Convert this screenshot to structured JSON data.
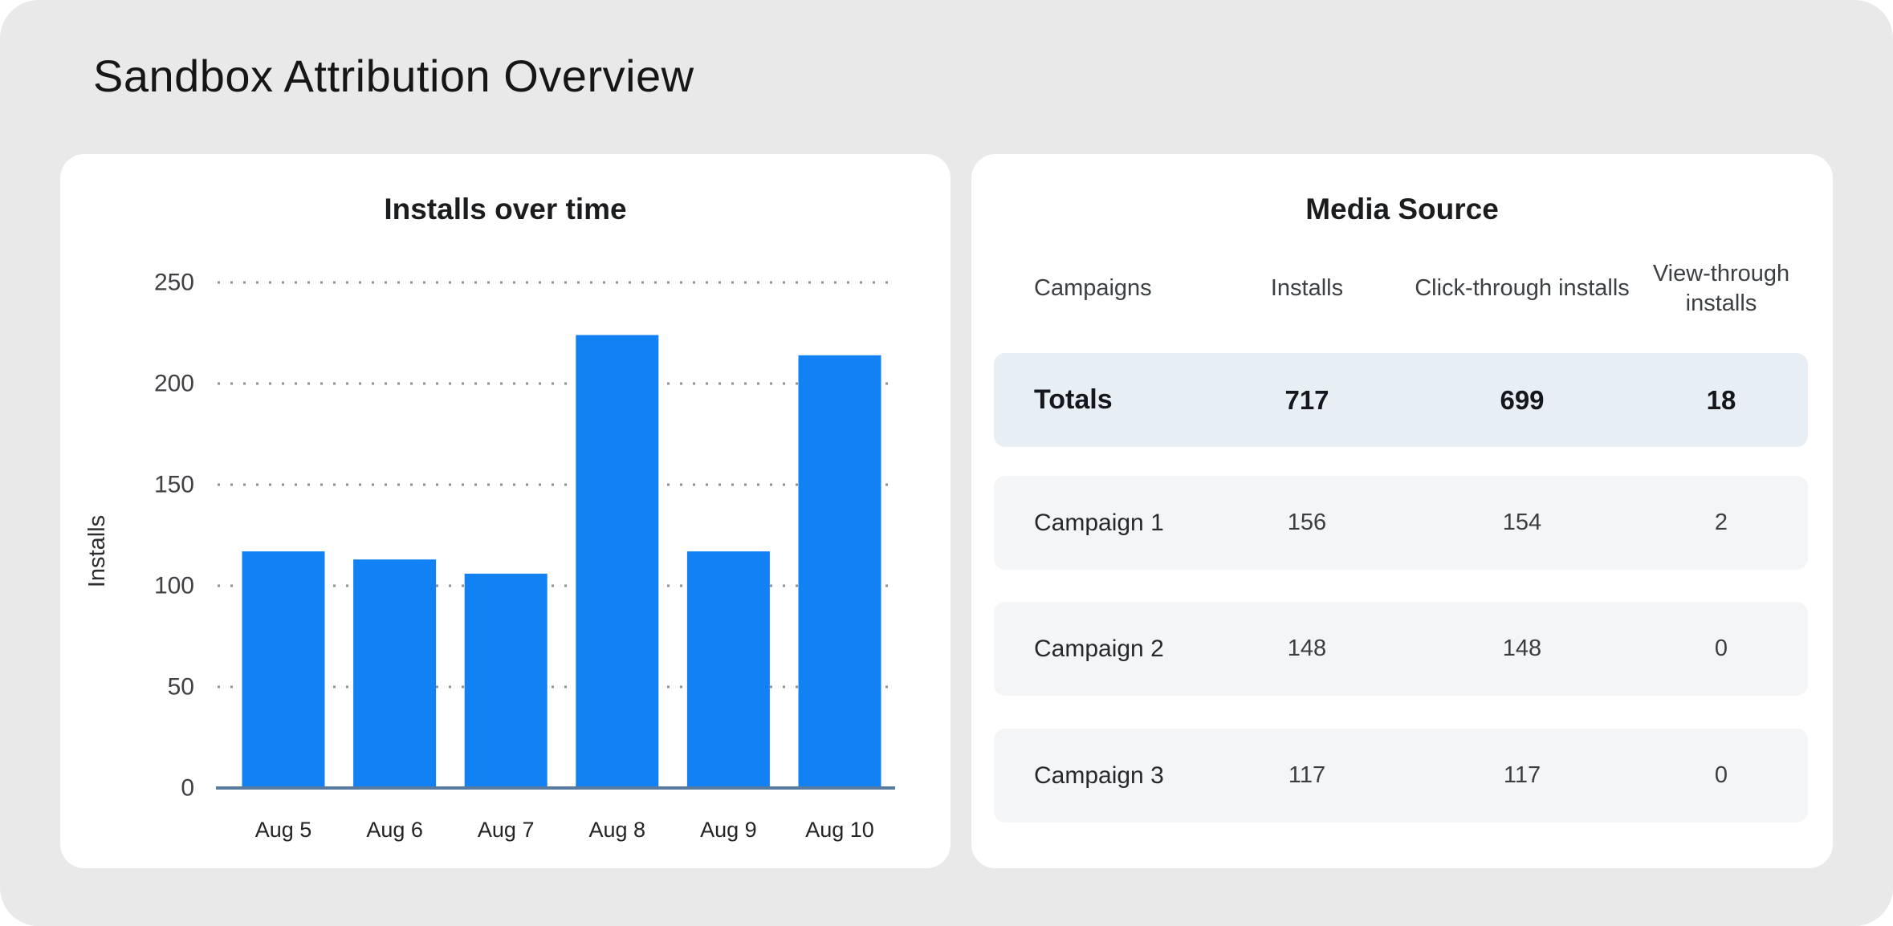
{
  "page": {
    "title": "Sandbox Attribution Overview"
  },
  "chart_data": {
    "type": "bar",
    "title": "Installs over time",
    "categories": [
      "Aug 5",
      "Aug 6",
      "Aug 7",
      "Aug 8",
      "Aug 9",
      "Aug 10"
    ],
    "values": [
      117,
      113,
      106,
      224,
      117,
      214
    ],
    "xlabel": "",
    "ylabel": "Installs",
    "ylim": [
      0,
      250
    ],
    "ytick_step": 50,
    "grid": "horizontal-dotted",
    "legend": "none",
    "bar_color": "#1181F4"
  },
  "media_source": {
    "title": "Media Source",
    "columns": [
      "Campaigns",
      "Installs",
      "Click-through installs",
      "View-through installs"
    ],
    "totals": {
      "label": "Totals",
      "installs": 717,
      "click_through": 699,
      "view_through": 18
    },
    "rows": [
      {
        "label": "Campaign 1",
        "installs": 156,
        "click_through": 154,
        "view_through": 2
      },
      {
        "label": "Campaign 2",
        "installs": 148,
        "click_through": 148,
        "view_through": 0
      },
      {
        "label": "Campaign 3",
        "installs": 117,
        "click_through": 117,
        "view_through": 0
      }
    ]
  },
  "colors": {
    "canvas_bg": "#E9E9E9",
    "bar": "#1181F4",
    "axis_line": "#587A9E",
    "gridline_dot": "#909090",
    "totals_row_bg": "#E7EEF4",
    "campaign_row_bg": "#F4F5F6"
  }
}
